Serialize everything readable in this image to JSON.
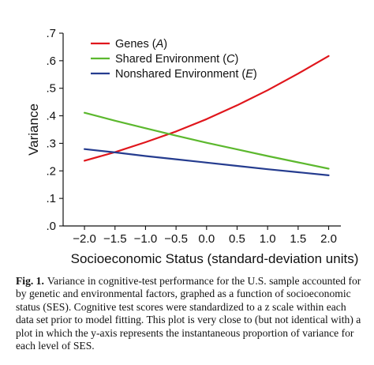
{
  "chart_data": {
    "type": "line",
    "xlabel": "Socioeconomic Status (standard-deviation units)",
    "ylabel": "Variance",
    "xlim": [
      -2.35,
      2.2
    ],
    "ylim": [
      0,
      0.7
    ],
    "xticks": [
      -2.0,
      -1.5,
      -1.0,
      -0.5,
      0.0,
      0.5,
      1.0,
      1.5,
      2.0
    ],
    "xtick_labels": [
      "−2.0",
      "−1.5",
      "−1.0",
      "−0.5",
      "0.0",
      "0.5",
      "1.0",
      "1.5",
      "2.0"
    ],
    "yticks": [
      0,
      0.1,
      0.2,
      0.3,
      0.4,
      0.5,
      0.6,
      0.7
    ],
    "ytick_labels": [
      ".0",
      ".1",
      ".2",
      ".3",
      ".4",
      ".5",
      ".6",
      ".7"
    ],
    "grid": false,
    "legend_position": "top-left",
    "series": [
      {
        "name": "Genes",
        "letter": "A",
        "color": "#e0161c",
        "x": [
          -2.0,
          -1.5,
          -1.0,
          -0.5,
          0.0,
          0.5,
          1.0,
          1.5,
          2.0
        ],
        "values": [
          0.237,
          0.268,
          0.304,
          0.343,
          0.388,
          0.438,
          0.493,
          0.553,
          0.617
        ]
      },
      {
        "name": "Shared Environment",
        "letter": "C",
        "color": "#5cb82e",
        "x": [
          -2.0,
          -1.5,
          -1.0,
          -0.5,
          0.0,
          0.5,
          1.0,
          1.5,
          2.0
        ],
        "values": [
          0.411,
          0.382,
          0.355,
          0.328,
          0.302,
          0.278,
          0.254,
          0.231,
          0.208
        ]
      },
      {
        "name": "Nonshared Environment",
        "letter": "E",
        "color": "#253c8f",
        "x": [
          -2.0,
          -1.5,
          -1.0,
          -0.5,
          0.0,
          0.5,
          1.0,
          1.5,
          2.0
        ],
        "values": [
          0.279,
          0.267,
          0.254,
          0.242,
          0.23,
          0.218,
          0.206,
          0.195,
          0.184
        ]
      }
    ]
  },
  "caption": {
    "label": "Fig. 1.",
    "text": "Variance in cognitive-test performance for the U.S. sample accounted for by genetic and environmental factors, graphed as a function of socioeconomic status (SES). Cognitive test scores were standardized to a z scale within each data set prior to model fitting. This plot is very close to (but not identical with) a plot in which the y-axis represents the instantaneous proportion of variance for each level of SES."
  }
}
